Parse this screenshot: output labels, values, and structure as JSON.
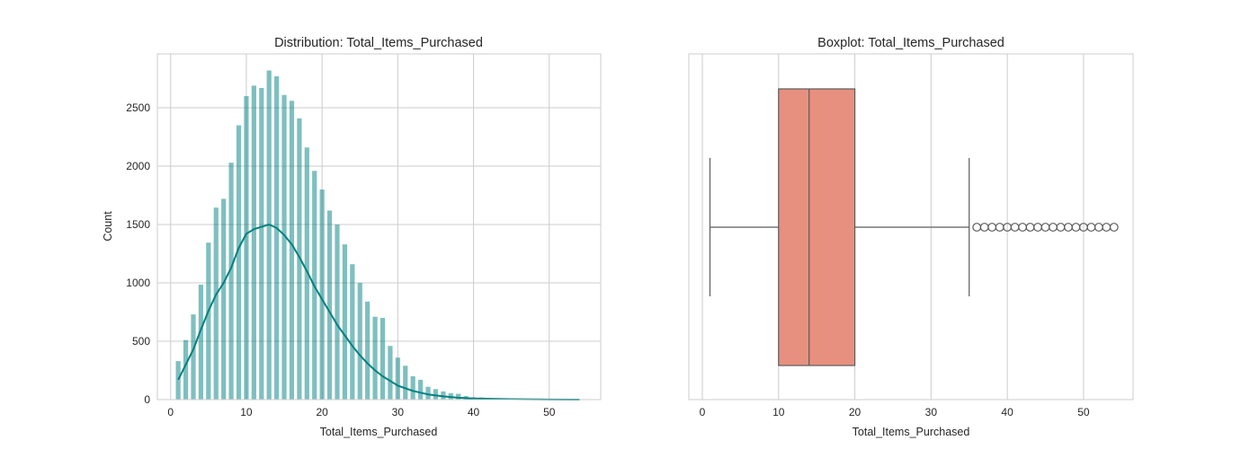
{
  "chart_data": [
    {
      "type": "bar",
      "title": "Distribution: Total_Items_Purchased",
      "xlabel": "Total_Items_Purchased",
      "ylabel": "Count",
      "xlim": [
        -1.75,
        56.8
      ],
      "ylim": [
        0,
        2962
      ],
      "xticks": [
        0,
        10,
        20,
        30,
        40,
        50
      ],
      "yticks": [
        0,
        500,
        1000,
        1500,
        2000,
        2500
      ],
      "grid": true,
      "bar_color": "#008080",
      "x": [
        1,
        2,
        3,
        4,
        5,
        6,
        7,
        8,
        9,
        10,
        11,
        12,
        13,
        14,
        15,
        16,
        17,
        18,
        19,
        20,
        21,
        22,
        23,
        24,
        25,
        26,
        27,
        28,
        29,
        30,
        31,
        32,
        33,
        34,
        35,
        36,
        37,
        38,
        39,
        40,
        41,
        42,
        43,
        44,
        45,
        46,
        47,
        48,
        49,
        50,
        51,
        52,
        53,
        54
      ],
      "values": [
        330,
        510,
        730,
        985,
        1345,
        1645,
        1720,
        2030,
        2350,
        2600,
        2690,
        2670,
        2820,
        2770,
        2610,
        2560,
        2410,
        2160,
        1960,
        1800,
        1620,
        1500,
        1330,
        1160,
        1000,
        840,
        710,
        700,
        460,
        360,
        290,
        200,
        170,
        110,
        90,
        70,
        55,
        50,
        30,
        20,
        18,
        12,
        8,
        6,
        4,
        3,
        2,
        2,
        1,
        1,
        1,
        1,
        0,
        1
      ],
      "kde": {
        "x": [
          1,
          2,
          3,
          4,
          5,
          6,
          7,
          8,
          9,
          10,
          11,
          12,
          13,
          14,
          15,
          16,
          17,
          18,
          19,
          20,
          21,
          22,
          23,
          24,
          25,
          26,
          27,
          28,
          29,
          30,
          32,
          34,
          36,
          38,
          40,
          45,
          50,
          54
        ],
        "y": [
          170,
          300,
          430,
          600,
          760,
          900,
          1000,
          1130,
          1300,
          1420,
          1460,
          1480,
          1500,
          1470,
          1410,
          1330,
          1220,
          1100,
          970,
          860,
          750,
          640,
          550,
          460,
          380,
          310,
          250,
          200,
          160,
          120,
          75,
          45,
          28,
          16,
          10,
          4,
          1,
          0
        ]
      }
    },
    {
      "type": "box",
      "title": "Boxplot: Total_Items_Purchased",
      "xlabel": "Total_Items_Purchased",
      "xlim": [
        -1.77,
        56.5
      ],
      "xticks": [
        0,
        10,
        20,
        30,
        40,
        50
      ],
      "grid": true,
      "box_color": "#e8907f",
      "whisker_low": 1,
      "q1": 10,
      "median": 14,
      "q3": 20,
      "whisker_high": 35,
      "outliers": [
        36,
        37,
        38,
        39,
        40,
        41,
        42,
        43,
        44,
        45,
        46,
        47,
        48,
        49,
        50,
        51,
        52,
        53,
        54
      ]
    }
  ]
}
